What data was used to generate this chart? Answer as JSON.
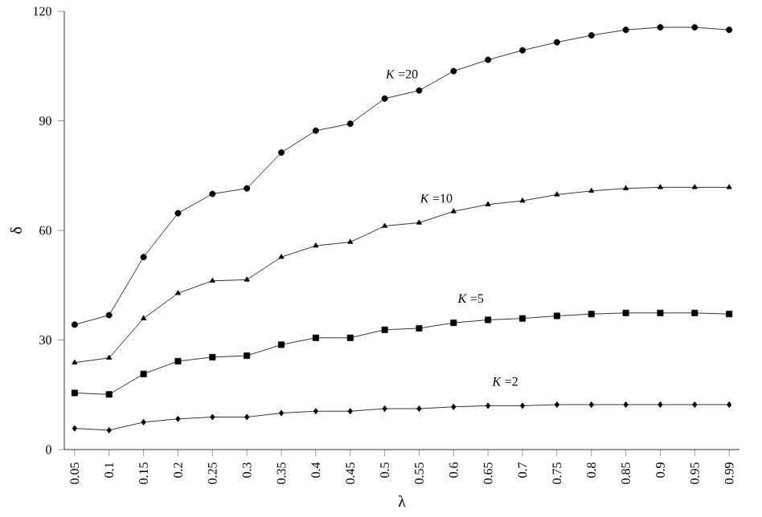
{
  "chart_data": {
    "type": "line",
    "xlabel": "λ",
    "ylabel": "δ",
    "categories": [
      "0.05",
      "0.1",
      "0.15",
      "0.2",
      "0.25",
      "0.3",
      "0.35",
      "0.4",
      "0.45",
      "0.5",
      "0.55",
      "0.6",
      "0.65",
      "0.7",
      "0.75",
      "0.8",
      "0.85",
      "0.9",
      "0.95",
      "0.99"
    ],
    "series": [
      {
        "name": "*K* =20",
        "color": "#000000",
        "marker": "circle",
        "values": [
          34.2,
          36.8,
          52.7,
          64.7,
          70.0,
          71.5,
          81.3,
          87.3,
          89.2,
          96.1,
          98.3,
          103.6,
          106.7,
          109.3,
          111.5,
          113.4,
          114.9,
          115.6,
          115.6,
          114.9
        ]
      },
      {
        "name": "*K* =10",
        "color": "#000000",
        "marker": "triangle",
        "values": [
          23.8,
          25.1,
          35.9,
          42.8,
          46.2,
          46.5,
          52.7,
          55.8,
          56.8,
          61.2,
          62.1,
          65.2,
          67.1,
          68.1,
          69.8,
          70.8,
          71.5,
          71.8,
          71.8,
          71.8
        ]
      },
      {
        "name": "*K* =5",
        "color": "#000000",
        "marker": "square",
        "values": [
          15.5,
          15.1,
          20.7,
          24.2,
          25.3,
          25.7,
          28.7,
          30.6,
          30.6,
          32.8,
          33.2,
          34.7,
          35.5,
          35.9,
          36.6,
          37.1,
          37.4,
          37.4,
          37.4,
          37.1
        ]
      },
      {
        "name": "*K* =2",
        "color": "#000000",
        "marker": "diamond",
        "values": [
          5.8,
          5.3,
          7.5,
          8.4,
          8.9,
          8.9,
          10.0,
          10.5,
          10.5,
          11.2,
          11.2,
          11.7,
          12.0,
          12.0,
          12.3,
          12.3,
          12.3,
          12.3,
          12.3,
          12.3
        ]
      }
    ],
    "ylim": [
      0,
      120
    ],
    "yticks": [
      0,
      30,
      60,
      90,
      120
    ],
    "line_style": "solid",
    "grid": false,
    "legend": false
  }
}
